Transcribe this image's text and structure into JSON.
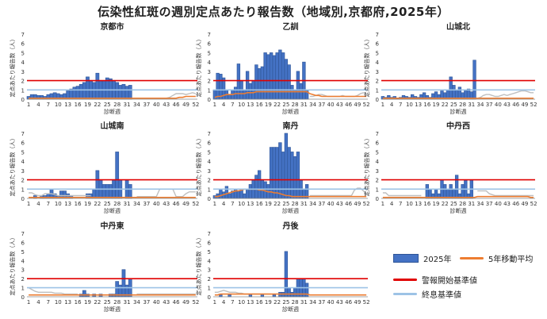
{
  "title": "伝染性紅斑の週別定点あたり報告数（地域別,京都府,2025年）",
  "legend": {
    "bars": "2025年",
    "avg": "5年移動平均",
    "alert": "警報開始基準値",
    "end": "終息基準値"
  },
  "colors": {
    "bar_fill": "#4472C4",
    "bar_stroke": "#2F5597",
    "avg_line": "#ED7D31",
    "alert_line": "#E00000",
    "end_line": "#9DC3E6",
    "prev_line": "#BFBFBF"
  },
  "chart_data": [
    {
      "type": "bar",
      "title": "京都市",
      "ylabel": "定点あたり報告数（人）",
      "xlabel": "診断週",
      "x_ticks": [
        1,
        4,
        7,
        10,
        13,
        16,
        19,
        22,
        25,
        28,
        31,
        34,
        37,
        40,
        43,
        46,
        49,
        52
      ],
      "ylim": [
        0,
        7
      ],
      "alert": 2,
      "end": 1,
      "values": [
        0.3,
        0.5,
        0.5,
        0.4,
        0.4,
        0.3,
        0.5,
        0.6,
        0.7,
        0.6,
        0.5,
        0.6,
        0.9,
        1.1,
        1.3,
        1.4,
        1.6,
        1.8,
        2.4,
        2.0,
        1.8,
        2.8,
        2.0,
        2.0,
        2.3,
        2.2,
        2.0,
        1.8,
        1.5,
        1.6,
        1.4,
        1.5
      ],
      "avg": [
        0.1,
        0.1,
        0.1,
        0.1,
        0.1,
        0.1,
        0.1,
        0.1,
        0.1,
        0.1,
        0.1,
        0.1,
        0.1,
        0.1,
        0.1,
        0.1,
        0.1,
        0.1,
        0.1,
        0.1,
        0.1,
        0.1,
        0.1,
        0.1,
        0.1,
        0.1,
        0.1,
        0.1,
        0.1,
        0.1,
        0.1,
        0.1,
        0.1,
        0.1,
        0.1,
        0.1,
        0.1,
        0.1,
        0.1,
        0.1,
        0.1,
        0.1,
        0.1,
        0.1,
        0.1,
        0.1,
        0.2,
        0.2,
        0.3,
        0.3,
        0.3,
        0.3
      ],
      "prev": [
        null,
        null,
        null,
        null,
        null,
        null,
        null,
        null,
        null,
        null,
        null,
        null,
        null,
        null,
        null,
        null,
        null,
        null,
        null,
        null,
        null,
        null,
        null,
        null,
        null,
        null,
        null,
        null,
        null,
        null,
        null,
        null,
        null,
        null,
        null,
        null,
        null,
        null,
        null,
        null,
        null,
        null,
        0.1,
        0.2,
        0.4,
        0.6,
        0.6,
        0.6,
        0.5,
        0.6,
        0.7,
        0.6
      ]
    },
    {
      "type": "bar",
      "title": "乙訓",
      "ylabel": "定点あたり報告数（人）",
      "xlabel": "診断週",
      "x_ticks": [
        1,
        4,
        7,
        10,
        13,
        16,
        19,
        22,
        25,
        28,
        31,
        34,
        37,
        40,
        43,
        46,
        49,
        52
      ],
      "ylim": [
        0,
        7
      ],
      "alert": 2,
      "end": 1,
      "values": [
        1.0,
        2.8,
        2.7,
        2.3,
        1.0,
        0.5,
        1.0,
        1.3,
        3.8,
        2.0,
        1.0,
        3.0,
        1.7,
        2.0,
        3.7,
        3.3,
        3.5,
        5.0,
        4.8,
        5.0,
        4.7,
        5.0,
        5.3,
        5.0,
        4.3,
        3.7,
        1.5,
        1.0,
        3.0,
        1.7,
        4.0,
        1.0
      ],
      "avg": [
        0.2,
        0.3,
        0.3,
        0.4,
        0.5,
        0.5,
        0.5,
        0.6,
        0.6,
        0.6,
        0.6,
        0.7,
        0.7,
        0.7,
        0.8,
        0.8,
        0.8,
        0.8,
        0.8,
        0.8,
        0.8,
        0.8,
        0.8,
        0.8,
        0.8,
        0.8,
        0.8,
        0.8,
        0.8,
        0.8,
        0.8,
        0.8,
        0.6,
        0.5,
        0.4,
        0.4,
        0.3,
        0.3,
        0.3,
        0.3,
        0.3,
        0.3,
        0.3,
        0.3,
        0.3,
        0.3,
        0.3,
        0.3,
        0.3,
        0.3,
        0.3,
        0.3
      ],
      "prev": [
        null,
        null,
        null,
        null,
        null,
        null,
        null,
        null,
        null,
        null,
        null,
        null,
        null,
        null,
        null,
        null,
        null,
        null,
        null,
        null,
        null,
        null,
        null,
        null,
        null,
        null,
        null,
        null,
        null,
        null,
        null,
        null,
        0.3,
        0.3,
        0.4,
        0.5,
        0.5,
        0.4,
        0.3,
        0.3,
        0.3,
        0.3,
        0.3,
        0.4,
        0.3,
        0.3,
        0.3,
        0.3,
        0.4,
        0.6,
        0.7,
        0.6
      ]
    },
    {
      "type": "bar",
      "title": "山城北",
      "ylabel": "定点あたり報告数（人）",
      "xlabel": "診断週",
      "x_ticks": [
        1,
        4,
        7,
        10,
        13,
        16,
        19,
        22,
        25,
        28,
        31,
        34,
        37,
        40,
        43,
        46,
        49,
        52
      ],
      "ylim": [
        0,
        7
      ],
      "alert": 2,
      "end": 1,
      "values": [
        0.3,
        0.2,
        0.4,
        0.2,
        0.3,
        0.1,
        0.2,
        0.4,
        0.3,
        0.2,
        0.5,
        0.3,
        0.2,
        0.5,
        0.7,
        0.4,
        0.2,
        0.6,
        0.8,
        0.5,
        0.9,
        0.7,
        1.0,
        2.4,
        1.5,
        1.0,
        1.3,
        0.7,
        0.9,
        1.1,
        0.8,
        4.2
      ],
      "avg": [
        0.1,
        0.1,
        0.1,
        0.1,
        0.1,
        0.1,
        0.1,
        0.1,
        0.1,
        0.1,
        0.1,
        0.1,
        0.1,
        0.1,
        0.1,
        0.1,
        0.1,
        0.1,
        0.1,
        0.1,
        0.1,
        0.1,
        0.1,
        0.1,
        0.1,
        0.1,
        0.1,
        0.1,
        0.1,
        0.1,
        0.1,
        0.1,
        0.1,
        0.1,
        0.1,
        0.1,
        0.1,
        0.1,
        0.1,
        0.1,
        0.1,
        0.1,
        0.1,
        0.1,
        0.1,
        0.1,
        0.1,
        0.1,
        0.1,
        0.1,
        0.1,
        0.1
      ],
      "prev": [
        null,
        null,
        null,
        null,
        null,
        null,
        null,
        null,
        null,
        null,
        null,
        null,
        null,
        null,
        null,
        null,
        null,
        null,
        null,
        null,
        null,
        null,
        null,
        null,
        null,
        null,
        null,
        null,
        null,
        null,
        null,
        null,
        0.1,
        0.2,
        0.4,
        0.5,
        0.5,
        0.4,
        0.3,
        0.3,
        0.4,
        0.5,
        0.4,
        0.5,
        0.6,
        0.7,
        0.8,
        0.9,
        0.9,
        0.8,
        0.7,
        0.7
      ]
    },
    {
      "type": "bar",
      "title": "山城南",
      "ylabel": "定点あたり報告数（人）",
      "xlabel": "診断週",
      "x_ticks": [
        1,
        4,
        7,
        10,
        13,
        16,
        19,
        22,
        25,
        28,
        31,
        34,
        37,
        40,
        43,
        46,
        49,
        52
      ],
      "ylim": [
        0,
        7
      ],
      "alert": 2,
      "end": 1,
      "values": [
        0,
        0,
        0.3,
        0,
        0.3,
        0.3,
        0.5,
        1.0,
        0.5,
        0.3,
        0.8,
        0.8,
        0.5,
        0.3,
        0,
        0,
        0,
        0,
        0.5,
        0.5,
        1.0,
        3.0,
        2.0,
        1.5,
        1.5,
        1.5,
        2.0,
        5.0,
        2.0,
        0,
        2.0,
        1.5
      ],
      "avg": [
        0.1,
        0.1,
        0.1,
        0.1,
        0.1,
        0.1,
        0.1,
        0.1,
        0.1,
        0.1,
        0.1,
        0.1,
        0.1,
        0.1,
        0.1,
        0.1,
        0.1,
        0.1,
        0.1,
        0.1,
        0.1,
        0.1,
        0.1,
        0.1,
        0.1,
        0.1,
        0.1,
        0.1,
        0.1,
        0.1,
        0.1,
        0.1,
        0.1,
        0.1,
        0.1,
        0.1,
        0.1,
        0.1,
        0.1,
        0.1,
        0.1,
        0.1,
        0.1,
        0.1,
        0.1,
        0.1,
        0.1,
        0.1,
        0.1,
        0.1,
        0.1,
        0.1
      ],
      "prev": [
        0.6,
        0.6,
        0.4,
        0.3,
        0.3,
        0.5,
        0.5,
        0.5,
        0.4,
        0.3,
        0.3,
        0.3,
        0.3,
        0.3,
        0.3,
        0.3,
        0.3,
        0.3,
        0.3,
        0.3,
        null,
        null,
        null,
        null,
        null,
        null,
        null,
        null,
        null,
        null,
        null,
        null,
        null,
        0.2,
        0.2,
        0.2,
        0.2,
        0.2,
        0.2,
        0.2,
        1.0,
        1.0,
        1.0,
        1.0,
        1.0,
        0.2,
        0.2,
        0.2,
        0.5,
        0.7,
        0.7,
        0.7
      ]
    },
    {
      "type": "bar",
      "title": "南丹",
      "ylabel": "定点あたり報告数（人）",
      "xlabel": "診断週",
      "x_ticks": [
        1,
        4,
        7,
        10,
        13,
        16,
        19,
        22,
        25,
        28,
        31,
        34,
        37,
        40,
        43,
        46,
        49,
        52
      ],
      "ylim": [
        0,
        7
      ],
      "alert": 2,
      "end": 1,
      "values": [
        0.3,
        0.5,
        1.0,
        0.7,
        1.3,
        0.5,
        0.8,
        1.0,
        0.8,
        1.0,
        0.5,
        1.0,
        1.5,
        2.0,
        2.5,
        3.0,
        2.0,
        1.8,
        1.5,
        5.5,
        5.5,
        5.5,
        6.0,
        5.0,
        7.0,
        5.5,
        5.0,
        4.5,
        5.0,
        2.0,
        1.0,
        1.5
      ],
      "avg": [
        0.2,
        0.2,
        0.3,
        0.4,
        0.5,
        0.6,
        0.7,
        0.8,
        0.8,
        0.9,
        1.0,
        1.0,
        1.0,
        1.0,
        1.0,
        0.9,
        0.9,
        0.8,
        0.7,
        0.7,
        0.6,
        0.6,
        0.5,
        0.4,
        0.3,
        0.3,
        0.2,
        0.2,
        0.2,
        0.2,
        0.2,
        0.2,
        0.2,
        0.2,
        0.2,
        0.2,
        0.2,
        0.2,
        0.2,
        0.2,
        0.2,
        0.2,
        0.2,
        0.2,
        0.2,
        0.2,
        0.2,
        0.2,
        0.2,
        0.2,
        0.2,
        0.2
      ],
      "prev": [
        null,
        null,
        null,
        null,
        null,
        null,
        null,
        null,
        null,
        null,
        null,
        null,
        null,
        null,
        null,
        null,
        null,
        null,
        null,
        null,
        null,
        null,
        null,
        null,
        null,
        null,
        null,
        null,
        null,
        null,
        null,
        null,
        0.3,
        0.3,
        0.3,
        0.3,
        0.3,
        0.3,
        0.3,
        0.3,
        0.3,
        0.3,
        0.3,
        0.3,
        0.3,
        0.3,
        0.3,
        0.9,
        1.1,
        1.1,
        0.8,
        0.4
      ]
    },
    {
      "type": "bar",
      "title": "中丹西",
      "ylabel": "定点あたり報告数（人）",
      "xlabel": "診断週",
      "x_ticks": [
        1,
        4,
        7,
        10,
        13,
        16,
        19,
        22,
        25,
        28,
        31,
        34,
        37,
        40,
        43,
        46,
        49,
        52
      ],
      "ylim": [
        0,
        7
      ],
      "alert": 2,
      "end": 1,
      "values": [
        0,
        0,
        0,
        0,
        0,
        0,
        0,
        0,
        0,
        0,
        0,
        0,
        0,
        0,
        0,
        1.5,
        1.0,
        0.5,
        1.0,
        0.5,
        2.0,
        1.5,
        1.0,
        1.5,
        1.0,
        2.5,
        0.5,
        1.5,
        2.0,
        0.5,
        2.0,
        0
      ],
      "avg": [
        0.1,
        0.1,
        0.1,
        0.1,
        0.1,
        0.1,
        0.1,
        0.1,
        0.1,
        0.1,
        0.1,
        0.1,
        0.1,
        0.1,
        0.1,
        0.1,
        0.1,
        0.1,
        0.1,
        0.1,
        0.1,
        0.1,
        0.1,
        0.1,
        0.1,
        0.1,
        0.1,
        0.1,
        0.1,
        0.1,
        0.1,
        0.1,
        0.2,
        0.2,
        0.2,
        0.2,
        0.2,
        0.2,
        0.2,
        0.2,
        0.2,
        0.2,
        0.2,
        0.2,
        0.2,
        0.2,
        0.2,
        0.2,
        0.2,
        0.2,
        0.1,
        0.1
      ],
      "prev": [
        0.6,
        0.6,
        0.3,
        0.3,
        0.3,
        0.3,
        0.3,
        0.3,
        0.3,
        0.3,
        0.3,
        0.3,
        0.3,
        0.3,
        null,
        null,
        null,
        null,
        null,
        null,
        null,
        null,
        null,
        null,
        null,
        null,
        null,
        null,
        null,
        null,
        null,
        null,
        0.8,
        0.8,
        0.8,
        0.8,
        0.5,
        0.4,
        0.3,
        0.3,
        0.3,
        0.3,
        0.3,
        0.3,
        0.3,
        0.3,
        0.3,
        0.3,
        0.3,
        0.3,
        0.3,
        0.3
      ]
    },
    {
      "type": "bar",
      "title": "中丹東",
      "ylabel": "定点あたり報告数（人）",
      "xlabel": "診断週",
      "x_ticks": [
        1,
        4,
        7,
        10,
        13,
        16,
        19,
        22,
        25,
        28,
        31,
        34,
        37,
        40,
        43,
        46,
        49,
        52
      ],
      "ylim": [
        0,
        7
      ],
      "alert": 2,
      "end": 1,
      "values": [
        0,
        0,
        0,
        0,
        0,
        0,
        0,
        0,
        0,
        0,
        0,
        0,
        0,
        0,
        0,
        0,
        0.3,
        0.7,
        0.3,
        0,
        0.3,
        0,
        0.3,
        0,
        0,
        0.3,
        0.3,
        1.7,
        1.3,
        3.0,
        1.3,
        2.0
      ],
      "avg": [
        0.2,
        0.2,
        0.2,
        0.2,
        0.2,
        0.2,
        0.2,
        0.2,
        0.2,
        0.2,
        0.2,
        0.2,
        0.2,
        0.2,
        0.2,
        0.2,
        0.2,
        0.2,
        0.2,
        0.2,
        0.2,
        0.2,
        0.2,
        0.2,
        0.2,
        0.2,
        0.2,
        0.2,
        0.2,
        0.2,
        0.2,
        0.2,
        0.2,
        0.2,
        0.2,
        0.2,
        0.2,
        0.2,
        0.2,
        0.2,
        0.2,
        0.2,
        0.2,
        0.2,
        0.2,
        0.2,
        0.2,
        0.2,
        0.2,
        0.2,
        0.2,
        0.2
      ],
      "prev": [
        1.0,
        0.8,
        0.6,
        0.5,
        0.5,
        0.5,
        0.5,
        0.5,
        0.4,
        0.4,
        0.4,
        0.3,
        0.3,
        0.3,
        0.3,
        0.3,
        null,
        null,
        null,
        null,
        null,
        null,
        null,
        null,
        null,
        null,
        null,
        null,
        null,
        null,
        null,
        null,
        null,
        0.3,
        0.3,
        0.3,
        0.3,
        0.3,
        0.3,
        0.3,
        0.3,
        0.3,
        0.3,
        0.3,
        0.3,
        0.3,
        0.3,
        0.3,
        0.3,
        0.3,
        0.3,
        0.3
      ]
    },
    {
      "type": "bar",
      "title": "丹後",
      "ylabel": "定点あたり報告数（人）",
      "xlabel": "診断週",
      "x_ticks": [
        1,
        4,
        7,
        10,
        13,
        16,
        19,
        22,
        25,
        28,
        31,
        34,
        37,
        40,
        43,
        46,
        49,
        52
      ],
      "ylim": [
        0,
        7
      ],
      "alert": 2,
      "end": 1,
      "values": [
        0,
        0,
        0.3,
        0,
        0,
        0.3,
        0,
        0,
        0,
        0,
        0,
        0,
        0.3,
        0,
        0,
        0,
        0.3,
        0,
        0,
        0,
        0.3,
        0,
        0.5,
        0.5,
        5.0,
        1.0,
        0.5,
        1.0,
        2.0,
        2.0,
        2.0,
        1.5
      ],
      "avg": [
        0.2,
        0.2,
        0.3,
        0.3,
        0.3,
        0.3,
        0.3,
        0.3,
        0.3,
        0.3,
        0.3,
        0.3,
        0.3,
        0.3,
        0.3,
        0.3,
        0.3,
        0.3,
        0.3,
        0.3,
        0.3,
        0.3,
        0.3,
        0.3,
        0.3,
        0.3,
        0.3,
        0.3,
        0.3,
        0.3,
        0.3,
        0.3,
        0.2,
        0.2,
        0.2,
        0.2,
        0.2,
        0.2,
        0.2,
        0.2,
        0.2,
        0.2,
        0.2,
        0.2,
        0.2,
        0.2,
        0.2,
        0.2,
        0.2,
        0.2,
        0.2,
        0.2
      ],
      "prev": [
        0.5,
        0.5,
        0.6,
        0.7,
        0.6,
        0.5,
        0.5,
        0.5,
        0.4,
        0.4,
        0.3,
        0.3,
        0.3,
        0.3,
        0.3,
        0.3,
        0.3,
        0.3,
        0.3,
        0.3,
        null,
        null,
        null,
        null,
        null,
        null,
        null,
        null,
        null,
        null,
        null,
        null,
        null,
        0.2,
        0.2,
        0.2,
        0.2,
        0.2,
        0.2,
        0.2,
        0.2,
        0.2,
        0.2,
        0.2,
        0.2,
        0.2,
        0.2,
        0.2,
        0.2,
        0.2,
        0.2,
        0.2
      ]
    }
  ]
}
